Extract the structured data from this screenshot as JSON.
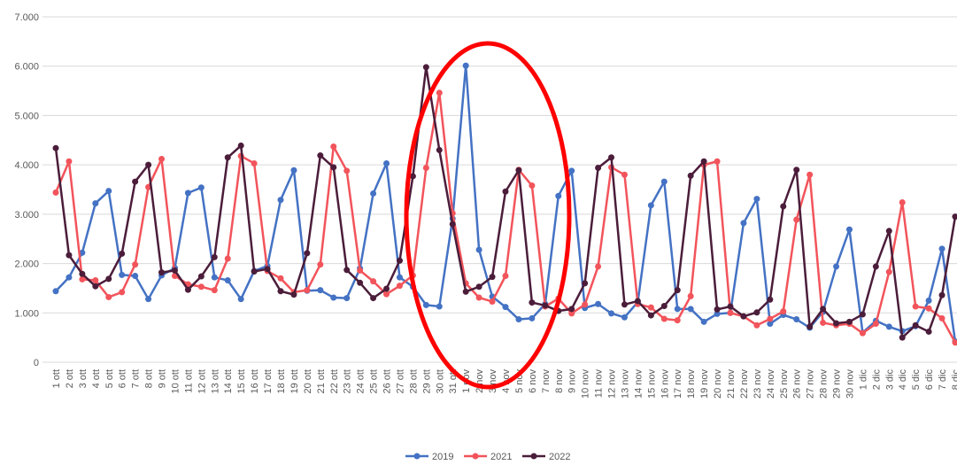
{
  "chart_data": {
    "type": "line",
    "categories": [
      "1 ott",
      "2 ott",
      "3 ott",
      "4 ott",
      "5 ott",
      "6 ott",
      "7 ott",
      "8 ott",
      "9 ott",
      "10 ott",
      "11 ott",
      "12 ott",
      "13 ott",
      "14 ott",
      "15 ott",
      "16 ott",
      "17 ott",
      "18 ott",
      "19 ott",
      "20 ott",
      "21 ott",
      "22 ott",
      "23 ott",
      "24 ott",
      "25 ott",
      "26 ott",
      "27 ott",
      "28 ott",
      "29 ott",
      "30 ott",
      "31 ott",
      "1 nov",
      "2 nov",
      "3 nov",
      "4 nov",
      "5 nov",
      "6 nov",
      "7 nov",
      "8 nov",
      "9 nov",
      "10 nov",
      "11 nov",
      "12 nov",
      "13 nov",
      "14 nov",
      "15 nov",
      "16 nov",
      "17 nov",
      "18 nov",
      "19 nov",
      "20 nov",
      "21 nov",
      "22 nov",
      "23 nov",
      "24 nov",
      "25 nov",
      "26 nov",
      "27 nov",
      "28 nov",
      "29 nov",
      "30 nov",
      "1 dic",
      "2 dic",
      "3 dic",
      "4 dic",
      "5 dic",
      "6 dic",
      "7 dic",
      "8 dic"
    ],
    "series": [
      {
        "name": "2019",
        "color": "#4472c4",
        "values": [
          1440,
          1720,
          2220,
          3220,
          3470,
          1770,
          1750,
          1280,
          1760,
          1910,
          3430,
          3540,
          1720,
          1660,
          1280,
          1850,
          1950,
          3290,
          3890,
          1450,
          1460,
          1310,
          1300,
          1900,
          3420,
          4030,
          1720,
          1530,
          1160,
          1130,
          2910,
          6010,
          2280,
          1330,
          1120,
          870,
          890,
          1180,
          3370,
          3880,
          1100,
          1180,
          990,
          910,
          1220,
          3180,
          3660,
          1080,
          1080,
          820,
          980,
          1000,
          2820,
          3310,
          780,
          960,
          870,
          700,
          1020,
          1940,
          2690,
          600,
          840,
          720,
          630,
          730,
          1250,
          2300,
          420
        ]
      },
      {
        "name": "2021",
        "color": "#f2545b",
        "values": [
          3440,
          4070,
          1680,
          1660,
          1320,
          1420,
          1980,
          3550,
          4120,
          1750,
          1580,
          1530,
          1460,
          2100,
          4180,
          4030,
          1850,
          1700,
          1420,
          1460,
          1980,
          4370,
          3880,
          1860,
          1640,
          1380,
          1550,
          1760,
          3940,
          5460,
          3020,
          1600,
          1310,
          1230,
          1750,
          3900,
          3580,
          1130,
          1290,
          990,
          1170,
          1940,
          3950,
          3800,
          1180,
          1110,
          880,
          850,
          1340,
          4000,
          4070,
          1000,
          930,
          750,
          880,
          1030,
          2890,
          3800,
          800,
          750,
          780,
          590,
          780,
          1830,
          3240,
          1130,
          1090,
          890,
          400
        ]
      },
      {
        "name": "2022",
        "color": "#4b1d3a",
        "values": [
          4340,
          2170,
          1790,
          1540,
          1690,
          2200,
          3660,
          4000,
          1820,
          1860,
          1470,
          1740,
          2130,
          4150,
          4390,
          1840,
          1890,
          1440,
          1370,
          2210,
          4190,
          3950,
          1870,
          1610,
          1300,
          1490,
          2060,
          3770,
          5980,
          4300,
          2800,
          1430,
          1530,
          1730,
          3460,
          3890,
          1210,
          1150,
          1040,
          1080,
          1600,
          3940,
          4150,
          1170,
          1240,
          950,
          1140,
          1460,
          3780,
          4070,
          1070,
          1130,
          930,
          1010,
          1270,
          3160,
          3900,
          720,
          1080,
          790,
          820,
          970,
          1940,
          2660,
          500,
          750,
          620,
          1360,
          2950
        ]
      }
    ],
    "ylim": [
      0,
      7000
    ],
    "yticks": [
      0,
      {
        "value": 1000,
        "label": "1.000"
      },
      {
        "value": 2000,
        "label": "2.000"
      },
      {
        "value": 3000,
        "label": "3.000"
      },
      {
        "value": 4000,
        "label": "4.000"
      },
      {
        "value": 5000,
        "label": "5.000"
      },
      {
        "value": 6000,
        "label": "6.000"
      },
      {
        "value": 7000,
        "label": "7.000"
      }
    ],
    "grid": true,
    "legend": "bottom"
  }
}
